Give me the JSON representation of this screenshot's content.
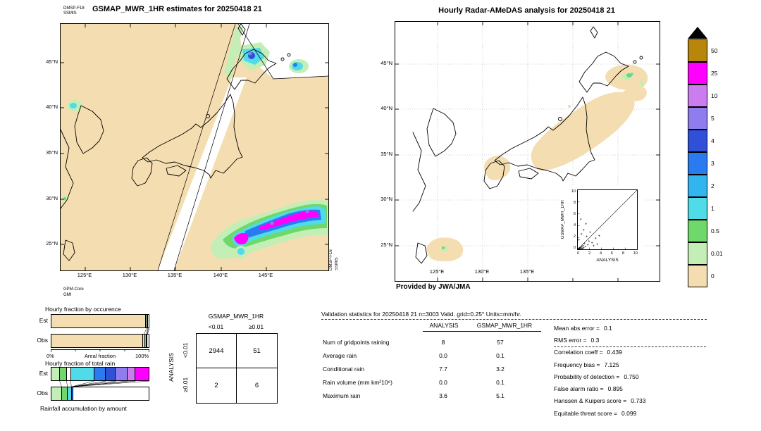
{
  "left_map": {
    "swath_top": {
      "line1": "DMSP-F18",
      "line2": "SSMIS"
    },
    "title": "GSMAP_MWR_1HR estimates for 20250418 21",
    "swath_bottom": {
      "line1": "GPM-Core",
      "line2": "GMI"
    },
    "swath_right": {
      "line1": "DMSP-F16",
      "line2": "SSMIS"
    },
    "lat_ticks": [
      "45°N",
      "40°N",
      "35°N",
      "30°N",
      "25°N"
    ],
    "lon_ticks": [
      "125°E",
      "130°E",
      "135°E",
      "140°E",
      "145°E"
    ]
  },
  "right_map": {
    "title": "Hourly Radar-AMeDAS analysis for 20250418 21",
    "credit": "Provided by JWA/JMA",
    "lat_ticks": [
      "45°N",
      "40°N",
      "35°N",
      "30°N",
      "25°N"
    ],
    "lon_ticks": [
      "125°E",
      "130°E",
      "135°E"
    ],
    "inset": {
      "xlabel": "ANALYSIS",
      "ylabel": "GSMAP_MWR_1HR",
      "x_ticks": [
        "0",
        "2",
        "4",
        "6",
        "8",
        "10"
      ],
      "y_ticks_desc": [
        "10",
        "8",
        "6",
        "4",
        "2",
        "0"
      ]
    }
  },
  "fractions": {
    "occurrence_title": "Hourly fraction by occurence",
    "total_title": "Hourly fraction of total rain",
    "est_label": "Est",
    "obs_label": "Obs",
    "axis": {
      "left": "0%",
      "center": "Areal fraction",
      "right": "100%"
    },
    "footer": "Rainfall accumulation by amount"
  },
  "contingency": {
    "title": "GSMAP_MWR_1HR",
    "col_labels": [
      "<0.01",
      "≥0.01"
    ],
    "row_axis": "ANALYSIS",
    "row_labels": [
      "<0.01",
      "≥0.01"
    ],
    "cells": [
      "2944",
      "51",
      "2",
      "6"
    ]
  },
  "stats": {
    "title": "Validation statistics for 20250418 21  n=3003 Valid. grid=0.25° Units=mm/hr.",
    "col_headers": [
      "ANALYSIS",
      "GSMAP_MWR_1HR"
    ],
    "rows": [
      {
        "label": "Num of gridpoints raining",
        "a": "8",
        "g": "57"
      },
      {
        "label": "Average rain",
        "a": "0.0",
        "g": "0.1"
      },
      {
        "label": "Conditional rain",
        "a": "7.7",
        "g": "3.2"
      },
      {
        "label": "Rain volume (mm km²10⁶)",
        "a": "0.0",
        "g": "0.1"
      },
      {
        "label": "Maximum rain",
        "a": "3.6",
        "g": "5.1"
      }
    ],
    "metrics": [
      {
        "label": "Mean abs error =",
        "value": "0.1"
      },
      {
        "label": "RMS error =",
        "value": "0.3"
      },
      {
        "label": "Correlation coeff =",
        "value": "0.439"
      },
      {
        "label": "Frequency bias =",
        "value": "7.125"
      },
      {
        "label": "Probability of detection =",
        "value": "0.750"
      },
      {
        "label": "False alarm ratio =",
        "value": "0.895"
      },
      {
        "label": "Hanssen & Kuipers score =",
        "value": "0.733"
      },
      {
        "label": "Equitable threat score =",
        "value": "0.099"
      }
    ]
  },
  "chart_data": [
    {
      "type": "table",
      "name": "contingency_table",
      "row_axis": "ANALYSIS",
      "col_axis": "GSMAP_MWR_1HR",
      "bins": [
        "<0.01",
        ">=0.01"
      ],
      "values": [
        [
          2944,
          51
        ],
        [
          2,
          6
        ]
      ],
      "n": 3003
    },
    {
      "type": "table",
      "name": "validation_statistics",
      "title": "Validation statistics for 20250418 21",
      "n": 3003,
      "grid": "0.25°",
      "units": "mm/hr",
      "columns": [
        "ANALYSIS",
        "GSMAP_MWR_1HR"
      ],
      "rows": [
        [
          "Num of gridpoints raining",
          8,
          57
        ],
        [
          "Average rain",
          0.0,
          0.1
        ],
        [
          "Conditional rain",
          7.7,
          3.2
        ],
        [
          "Rain volume (mm km²10⁶)",
          0.0,
          0.1
        ],
        [
          "Maximum rain",
          3.6,
          5.1
        ]
      ],
      "metrics": {
        "mean_abs_error": 0.1,
        "rms_error": 0.3,
        "correlation_coeff": 0.439,
        "frequency_bias": 7.125,
        "probability_of_detection": 0.75,
        "false_alarm_ratio": 0.895,
        "hanssen_kuipers_score": 0.733,
        "equitable_threat_score": 0.099
      }
    },
    {
      "type": "scatter",
      "name": "inset_scatter",
      "xlabel": "ANALYSIS",
      "ylabel": "GSMAP_MWR_1HR",
      "xlim": [
        0,
        10
      ],
      "ylim": [
        0,
        10
      ],
      "diagonal": true,
      "points": [
        [
          0.05,
          0.02
        ],
        [
          0.1,
          0.05
        ],
        [
          0.15,
          0.1
        ],
        [
          0.2,
          0.05
        ],
        [
          0.25,
          0.15
        ],
        [
          0.3,
          0.05
        ],
        [
          0.35,
          0.3
        ],
        [
          0.4,
          0.1
        ],
        [
          0.5,
          0.25
        ],
        [
          0.6,
          0.1
        ],
        [
          0.7,
          0.45
        ],
        [
          0.8,
          0.15
        ],
        [
          0.9,
          0.6
        ],
        [
          1.0,
          0.25
        ],
        [
          1.1,
          1.0
        ],
        [
          1.3,
          0.5
        ],
        [
          1.5,
          2.2
        ],
        [
          1.7,
          0.8
        ],
        [
          1.9,
          1.4
        ],
        [
          2.1,
          2.9
        ],
        [
          2.4,
          1.1
        ],
        [
          2.7,
          0.6
        ],
        [
          3.0,
          1.9
        ],
        [
          3.3,
          0.9
        ],
        [
          3.6,
          2.3
        ],
        [
          0.6,
          2.6
        ],
        [
          1.0,
          3.3
        ],
        [
          1.4,
          4.3
        ],
        [
          0.5,
          5.1
        ],
        [
          0.2,
          1.6
        ]
      ]
    },
    {
      "type": "heatmap",
      "name": "rain_rate_colorbar",
      "units": "mm/hr",
      "levels": [
        0,
        0.01,
        0.5,
        1,
        2,
        3,
        4,
        5,
        10,
        25,
        50
      ],
      "colors": [
        "#f4ddb0",
        "#c3eeb5",
        "#6fd86a",
        "#4fdbe8",
        "#32b4ee",
        "#2b7bf0",
        "#3050d8",
        "#8f7df0",
        "#cb7df0",
        "#ff00ff",
        "#b8860b"
      ]
    },
    {
      "type": "bar",
      "name": "hourly_fraction_by_occurence",
      "categories": [
        "Est",
        "Obs"
      ],
      "xlabel": "Areal fraction",
      "xlim_pct": [
        0,
        100
      ],
      "series_est": [
        {
          "color": "#f4ddb0",
          "frac": 0.972
        },
        {
          "color": "#c3eeb5",
          "frac": 0.012
        },
        {
          "color": "#6fd86a",
          "frac": 0.006
        },
        {
          "color": "#ffffff",
          "frac": 0.01
        }
      ],
      "series_obs": [
        {
          "color": "#f4ddb0",
          "frac": 0.948
        },
        {
          "color": "#c3eeb5",
          "frac": 0.022
        },
        {
          "color": "#6fd86a",
          "frac": 0.008
        },
        {
          "color": "#4fdbe8",
          "frac": 0.004
        },
        {
          "color": "#ffffff",
          "frac": 0.018
        }
      ],
      "connectors": [
        {
          "e": 0.972,
          "o": 0.948
        },
        {
          "e": 0.984,
          "o": 0.97
        },
        {
          "e": 0.99,
          "o": 0.978
        },
        {
          "e": 1.0,
          "o": 0.982
        }
      ]
    },
    {
      "type": "bar",
      "name": "hourly_fraction_of_total_rain",
      "categories": [
        "Est",
        "Obs"
      ],
      "xlabel": "Rainfall accumulation by amount",
      "series_est": [
        {
          "color": "#c3eeb5",
          "frac": 0.09
        },
        {
          "color": "#6fd86a",
          "frac": 0.07
        },
        {
          "color": "#ffffff",
          "frac": 0.04
        },
        {
          "color": "#4fdbe8",
          "frac": 0.24
        },
        {
          "color": "#2b7bf0",
          "frac": 0.12
        },
        {
          "color": "#3050d8",
          "frac": 0.1
        },
        {
          "color": "#8f7df0",
          "frac": 0.12
        },
        {
          "color": "#cb7df0",
          "frac": 0.08
        },
        {
          "color": "#ff00ff",
          "frac": 0.14
        }
      ],
      "series_obs": [
        {
          "color": "#c3eeb5",
          "frac": 0.11
        },
        {
          "color": "#6fd86a",
          "frac": 0.06
        },
        {
          "color": "#4fdbe8",
          "frac": 0.04
        },
        {
          "color": "#2b7bf0",
          "frac": 0.015
        },
        {
          "color": "#ffffff",
          "frac": 0.775
        }
      ],
      "connectors": [
        {
          "e": 0.09,
          "o": 0.11
        },
        {
          "e": 0.16,
          "o": 0.17
        },
        {
          "e": 0.2,
          "o": 0.21
        },
        {
          "e": 0.44,
          "o": 0.215
        },
        {
          "e": 0.56,
          "o": 0.22
        },
        {
          "e": 0.66,
          "o": 0.222
        },
        {
          "e": 0.78,
          "o": 0.225
        },
        {
          "e": 0.86,
          "o": 0.228
        },
        {
          "e": 1.0,
          "o": 0.23
        }
      ]
    }
  ]
}
